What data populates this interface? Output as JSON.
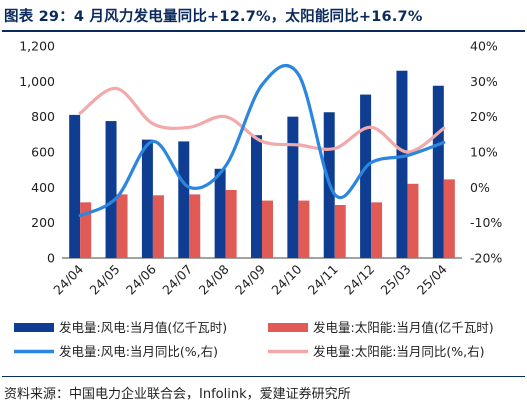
{
  "title": "图表 29：4 月风力发电量同比+12.7%，太阳能同比+16.7%",
  "source": "资料来源：中国电力企业联合会，Infolink，爱建证券研究所",
  "chart_data": {
    "type": "bar",
    "categories": [
      "24/04",
      "24/05",
      "24/06",
      "24/07",
      "24/08",
      "24/09",
      "24/10",
      "24/11",
      "24/12",
      "25/03",
      "25/04"
    ],
    "left_axis": {
      "ylim": [
        0,
        1200
      ],
      "ticks": [
        "0",
        "200",
        "400",
        "600",
        "800",
        "1,000",
        "1,200"
      ]
    },
    "right_axis": {
      "ylim": [
        -20,
        40
      ],
      "ticks": [
        "-20%",
        "-10%",
        "0%",
        "10%",
        "20%",
        "30%",
        "40%"
      ]
    },
    "series": [
      {
        "name": "发电量:风电:当月值(亿千瓦时)",
        "kind": "bar",
        "axis": "left",
        "color": "#0e3d91",
        "values": [
          810,
          775,
          670,
          660,
          505,
          695,
          800,
          825,
          925,
          1060,
          975
        ]
      },
      {
        "name": "发电量:太阳能:当月值(亿千瓦时)",
        "kind": "bar",
        "axis": "left",
        "color": "#e05a56",
        "values": [
          315,
          360,
          355,
          360,
          385,
          325,
          325,
          300,
          315,
          420,
          445
        ]
      },
      {
        "name": "发电量:风电:当月同比(%,右)",
        "kind": "line",
        "axis": "right",
        "color": "#2b86e0",
        "values": [
          -8,
          -3,
          13,
          0,
          6,
          29,
          32,
          -2,
          7,
          9,
          12.7
        ]
      },
      {
        "name": "发电量:太阳能:当月同比(%,右)",
        "kind": "line",
        "axis": "right",
        "color": "#f2a9a9",
        "values": [
          21,
          28,
          18,
          17,
          20,
          13,
          12,
          11,
          17,
          10,
          16.7
        ]
      }
    ],
    "grid": false,
    "legend_position": "bottom"
  }
}
